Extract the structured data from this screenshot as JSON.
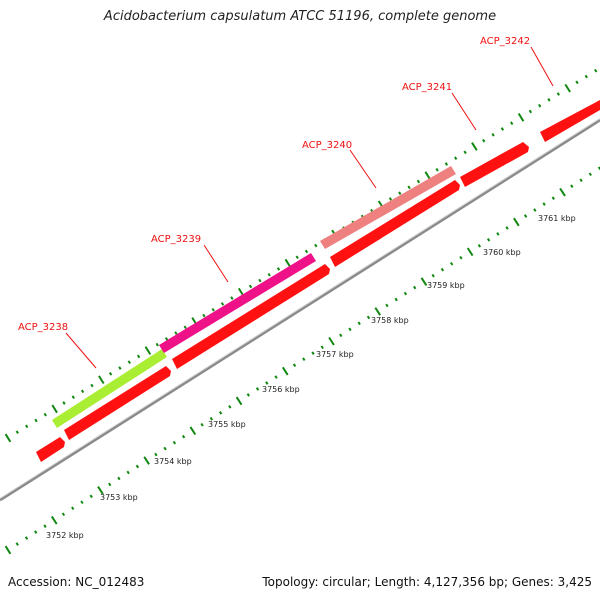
{
  "title": "Acidobacterium capsulatum ATCC 51196, complete genome",
  "footer": {
    "accession": "Accession: NC_012483",
    "summary": "Topology: circular; Length: 4,127,356 bp; Genes: 3,425"
  },
  "colors": {
    "backbone": "#8a8a8a",
    "gene_red": "#ff1111",
    "tick_green": "#118811",
    "label_red": "#ee1111"
  },
  "kbp_labels": [
    "3752 kbp",
    "3753 kbp",
    "3754 kbp",
    "3755 kbp",
    "3756 kbp",
    "3757 kbp",
    "3758 kbp",
    "3759 kbp",
    "3760 kbp",
    "3761 kbp"
  ],
  "genes": [
    {
      "label": "ACP_3238",
      "color": "#aaee33"
    },
    {
      "label": "ACP_3239",
      "color": "#ee1188"
    },
    {
      "label": "ACP_3240",
      "color": "#ee8080"
    },
    {
      "label": "ACP_3241",
      "color": "#ff1111"
    },
    {
      "label": "ACP_3242",
      "color": "#ff1111"
    }
  ]
}
